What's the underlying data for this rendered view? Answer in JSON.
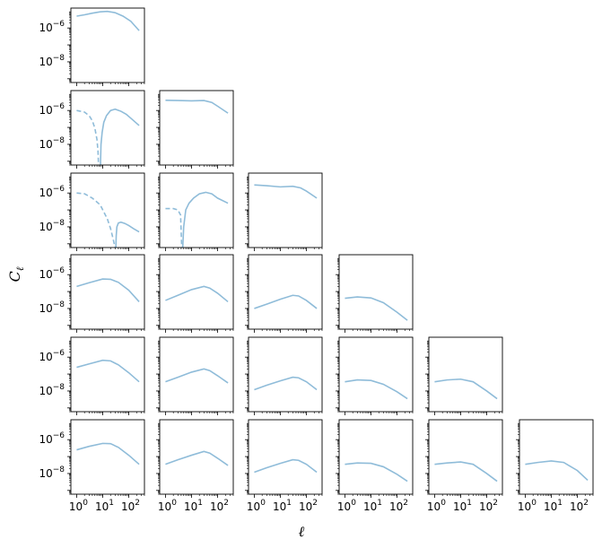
{
  "chart_data": {
    "type": "line",
    "layout": "lower-triangular grid of 6 x 6 panels",
    "xlabel": "ℓ",
    "ylabel": "C_ℓ",
    "x_scale": "log",
    "y_scale": "log",
    "xlim": [
      0.6,
      400
    ],
    "ylim": [
      6e-10,
      1.5e-05
    ],
    "x_ticks": [
      1,
      10,
      100
    ],
    "x_tick_labels": [
      {
        "base": "10",
        "exp": "0"
      },
      {
        "base": "10",
        "exp": "1"
      },
      {
        "base": "10",
        "exp": "2"
      }
    ],
    "y_ticks": [
      1e-06,
      1e-08
    ],
    "y_tick_labels": [
      {
        "base": "10",
        "exp": "−6"
      },
      {
        "base": "10",
        "exp": "−8"
      }
    ],
    "line_color": "#8fbcd9",
    "grid": false,
    "legend": "none",
    "panels": [
      {
        "row": 0,
        "col": 0,
        "segments": [
          {
            "style": "solid",
            "x": [
              1,
              2,
              4,
              8,
              15,
              30,
              60,
              120,
              250
            ],
            "y": [
              5e-06,
              6e-06,
              7.5e-06,
              9e-06,
              9.5e-06,
              8e-06,
              5e-06,
              2.5e-06,
              7e-07
            ]
          }
        ]
      },
      {
        "row": 1,
        "col": 0,
        "segments": [
          {
            "style": "dashed",
            "x": [
              1,
              2,
              3,
              4,
              5,
              6,
              6.6,
              6.9
            ],
            "y": [
              1e-06,
              8e-07,
              5e-07,
              2.5e-07,
              9e-08,
              2e-08,
              4e-09,
              6e-10
            ]
          },
          {
            "style": "solid",
            "x": [
              8.2,
              8.6,
              9.5,
              11,
              14,
              20,
              30,
              50,
              80,
              120,
              250
            ],
            "y": [
              6e-10,
              1e-08,
              5e-08,
              2e-07,
              5e-07,
              1e-06,
              1.2e-06,
              9e-07,
              6e-07,
              3.5e-07,
              1.3e-07
            ]
          }
        ]
      },
      {
        "row": 1,
        "col": 1,
        "segments": [
          {
            "style": "solid",
            "x": [
              1,
              3,
              10,
              30,
              60,
              100,
              250
            ],
            "y": [
              4e-06,
              3.9e-06,
              3.7e-06,
              3.9e-06,
              3e-06,
              1.8e-06,
              7e-07
            ]
          }
        ]
      },
      {
        "row": 2,
        "col": 0,
        "segments": [
          {
            "style": "dashed",
            "x": [
              1,
              2,
              4,
              8,
              15,
              20,
              25,
              28,
              30
            ],
            "y": [
              1e-06,
              9e-07,
              5e-07,
              2e-07,
              3e-08,
              8e-09,
              2e-09,
              9e-10,
              6e-10
            ]
          },
          {
            "style": "solid",
            "x": [
              32,
              33,
              35,
              40,
              50,
              70,
              100,
              150,
              250
            ],
            "y": [
              6e-10,
              3e-09,
              1e-08,
              1.7e-08,
              1.9e-08,
              1.6e-08,
              1.2e-08,
              8e-09,
              5e-09
            ]
          }
        ]
      },
      {
        "row": 2,
        "col": 1,
        "segments": [
          {
            "style": "dashed",
            "x": [
              1,
              2,
              3,
              3.8,
              4.2
            ],
            "y": [
              1.2e-07,
              1.2e-07,
              1e-07,
              5e-08,
              6e-10
            ]
          },
          {
            "style": "solid",
            "x": [
              4.6,
              5,
              6,
              8,
              12,
              20,
              35,
              60,
              100,
              250
            ],
            "y": [
              6e-10,
              1e-08,
              1e-07,
              2.5e-07,
              5e-07,
              9e-07,
              1.1e-06,
              9e-07,
              5e-07,
              2.5e-07
            ]
          }
        ]
      },
      {
        "row": 2,
        "col": 2,
        "segments": [
          {
            "style": "solid",
            "x": [
              1,
              3,
              10,
              30,
              60,
              100,
              250
            ],
            "y": [
              3e-06,
              2.7e-06,
              2.3e-06,
              2.5e-06,
              2e-06,
              1.3e-06,
              5e-07
            ]
          }
        ]
      },
      {
        "row": 3,
        "col": 0,
        "segments": [
          {
            "style": "solid",
            "x": [
              1,
              3,
              10,
              20,
              40,
              100,
              250
            ],
            "y": [
              2e-07,
              3.3e-07,
              5.5e-07,
              5.3e-07,
              3.5e-07,
              1.2e-07,
              2.5e-08
            ]
          }
        ]
      },
      {
        "row": 3,
        "col": 1,
        "segments": [
          {
            "style": "solid",
            "x": [
              1,
              3,
              10,
              30,
              50,
              100,
              250
            ],
            "y": [
              3e-08,
              6e-08,
              1.3e-07,
              2e-07,
              1.6e-07,
              8e-08,
              2.5e-08
            ]
          }
        ]
      },
      {
        "row": 3,
        "col": 2,
        "segments": [
          {
            "style": "solid",
            "x": [
              1,
              3,
              10,
              30,
              50,
              100,
              250
            ],
            "y": [
              1e-08,
              1.8e-08,
              3.5e-08,
              6e-08,
              5.5e-08,
              3e-08,
              1e-08
            ]
          }
        ]
      },
      {
        "row": 3,
        "col": 3,
        "segments": [
          {
            "style": "solid",
            "x": [
              1,
              3,
              10,
              30,
              100,
              250
            ],
            "y": [
              4e-08,
              4.8e-08,
              4.2e-08,
              2.2e-08,
              6e-09,
              2e-09
            ]
          }
        ]
      },
      {
        "row": 4,
        "col": 0,
        "segments": [
          {
            "style": "solid",
            "x": [
              1,
              3,
              10,
              20,
              40,
              100,
              250
            ],
            "y": [
              2.5e-07,
              4e-07,
              6.5e-07,
              6e-07,
              3.5e-07,
              1.2e-07,
              3.5e-08
            ]
          }
        ]
      },
      {
        "row": 4,
        "col": 1,
        "segments": [
          {
            "style": "solid",
            "x": [
              1,
              3,
              10,
              30,
              50,
              100,
              250
            ],
            "y": [
              3.5e-08,
              6.5e-08,
              1.3e-07,
              2e-07,
              1.6e-07,
              8e-08,
              3e-08
            ]
          }
        ]
      },
      {
        "row": 4,
        "col": 2,
        "segments": [
          {
            "style": "solid",
            "x": [
              1,
              3,
              10,
              30,
              50,
              100,
              250
            ],
            "y": [
              1.2e-08,
              2.2e-08,
              4e-08,
              6.5e-08,
              6e-08,
              3.5e-08,
              1.2e-08
            ]
          }
        ]
      },
      {
        "row": 4,
        "col": 3,
        "segments": [
          {
            "style": "solid",
            "x": [
              1,
              3,
              10,
              30,
              100,
              250
            ],
            "y": [
              3.5e-08,
              4.5e-08,
              4.2e-08,
              2.5e-08,
              9e-09,
              3.5e-09
            ]
          }
        ]
      },
      {
        "row": 4,
        "col": 4,
        "segments": [
          {
            "style": "solid",
            "x": [
              1,
              3,
              10,
              30,
              100,
              250
            ],
            "y": [
              3.5e-08,
              4.5e-08,
              5e-08,
              3.5e-08,
              1e-08,
              3.5e-09
            ]
          }
        ]
      },
      {
        "row": 5,
        "col": 0,
        "segments": [
          {
            "style": "solid",
            "x": [
              1,
              3,
              10,
              20,
              40,
              100,
              250
            ],
            "y": [
              2.5e-07,
              4e-07,
              6e-07,
              5.8e-07,
              3.5e-07,
              1.2e-07,
              3.5e-08
            ]
          }
        ]
      },
      {
        "row": 5,
        "col": 1,
        "segments": [
          {
            "style": "solid",
            "x": [
              1,
              3,
              10,
              30,
              50,
              100,
              250
            ],
            "y": [
              3.5e-08,
              6.5e-08,
              1.2e-07,
              2e-07,
              1.6e-07,
              8e-08,
              3e-08
            ]
          }
        ]
      },
      {
        "row": 5,
        "col": 2,
        "segments": [
          {
            "style": "solid",
            "x": [
              1,
              3,
              10,
              30,
              50,
              100,
              250
            ],
            "y": [
              1.2e-08,
              2.2e-08,
              4e-08,
              6.5e-08,
              6e-08,
              3.5e-08,
              1.2e-08
            ]
          }
        ]
      },
      {
        "row": 5,
        "col": 3,
        "segments": [
          {
            "style": "solid",
            "x": [
              1,
              3,
              10,
              30,
              100,
              250
            ],
            "y": [
              3.5e-08,
              4.2e-08,
              4e-08,
              2.5e-08,
              9e-09,
              3.5e-09
            ]
          }
        ]
      },
      {
        "row": 5,
        "col": 4,
        "segments": [
          {
            "style": "solid",
            "x": [
              1,
              3,
              10,
              30,
              100,
              250
            ],
            "y": [
              3.5e-08,
              4.2e-08,
              4.8e-08,
              3.5e-08,
              1e-08,
              3.5e-09
            ]
          }
        ]
      },
      {
        "row": 5,
        "col": 5,
        "segments": [
          {
            "style": "solid",
            "x": [
              1,
              3,
              10,
              30,
              100,
              250
            ],
            "y": [
              3.5e-08,
              4.5e-08,
              5.5e-08,
              4.5e-08,
              1.5e-08,
              4e-09
            ]
          }
        ]
      }
    ]
  }
}
